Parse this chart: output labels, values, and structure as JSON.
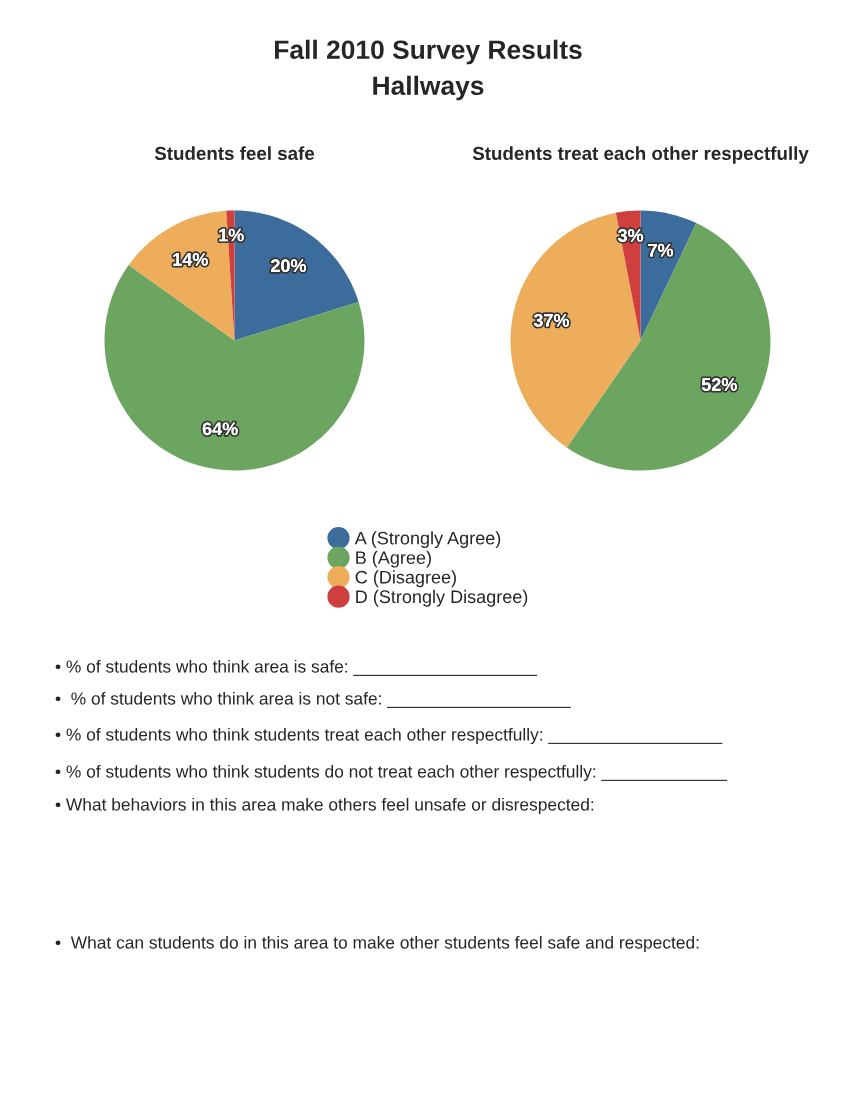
{
  "chart_data": [
    {
      "type": "other",
      "title": "Fall 2010 Survey Results",
      "subtitle": "Hallways"
    },
    {
      "type": "pie",
      "title": "Students feel safe",
      "categories": [
        "A (Strongly Agree)",
        "B (Agree)",
        "C (Disagree)",
        "D (Strongly Disagree)"
      ],
      "values": [
        20,
        64,
        14,
        1
      ],
      "value_labels": [
        "20%",
        "64%",
        "14%",
        "1%"
      ],
      "colors": [
        "#3b6c9b",
        "#6ba55f",
        "#eead5b",
        "#cf3f3e"
      ],
      "legend": "bottom"
    },
    {
      "type": "pie",
      "title": "Students treat each other respectfully",
      "categories": [
        null,
        null,
        null,
        null
      ],
      "values": [
        7,
        52,
        37,
        3
      ],
      "value_labels": [
        "7%",
        "52%",
        "37%",
        "3%"
      ],
      "colors": [
        "#3b6c9b",
        "#6ba55f",
        "#eead5b",
        "#cf3f3e"
      ]
    },
    {
      "type": "other",
      "annotations": [
        "• % of students who think area is safe: ___________________",
        "•  % of students who think area is not safe: ___________________",
        "• % of students who think students treat each other respectfully: __________________",
        "• % of students who think students do not treat each other respectfully: _____________",
        "• What behaviors in this area make others feel unsafe or disrespected:",
        "•  What can students do in this area to make other students feel safe and respected:"
      ]
    }
  ]
}
